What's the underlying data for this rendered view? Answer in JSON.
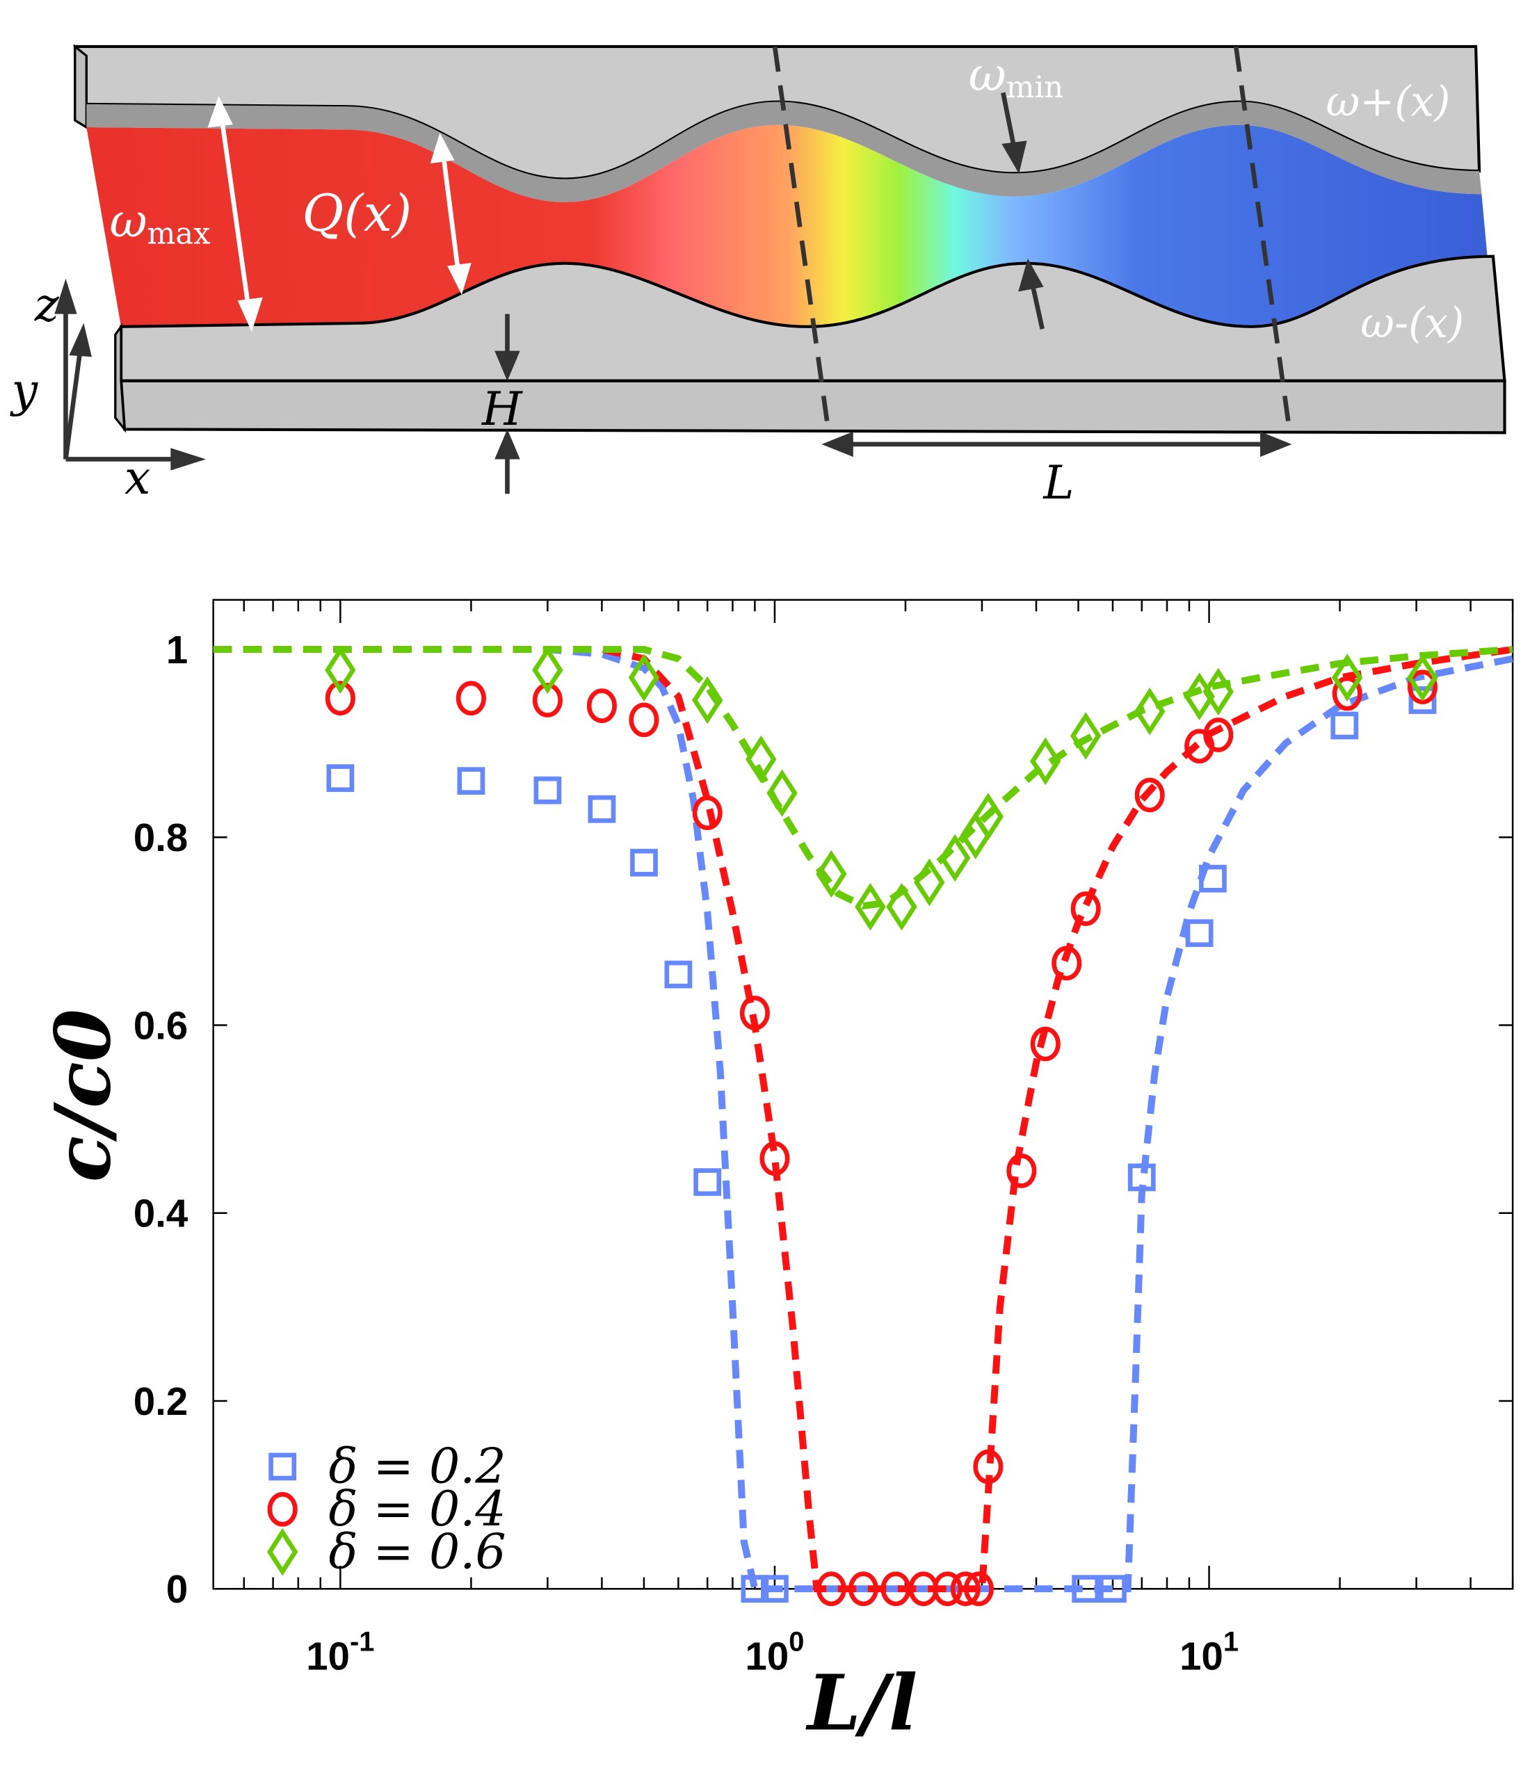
{
  "diagram": {
    "labels": {
      "omega_max": "ω",
      "omega_max_sub": "max",
      "q": "Q(x)",
      "omega_min": "ω",
      "omega_min_sub": "min",
      "omega_plus": "ω+(x)",
      "omega_minus": "ω-(x)",
      "h": "H",
      "l": "L",
      "axis_x": "x",
      "axis_y": "y",
      "axis_z": "z"
    },
    "colors": {
      "wall": "#cbcbcb",
      "wall_face": "#9a9a9a",
      "fluid_start": "#e8322b",
      "fluid_end": "#3a64d8"
    }
  },
  "chart_data": {
    "type": "scatter",
    "xlabel": "L/l",
    "ylabel": "c/c0",
    "xscale": "log",
    "xlim": [
      0.051,
      50
    ],
    "ylim": [
      0,
      1.05
    ],
    "yticks": [
      "0",
      "0.2",
      "0.4",
      "0.6",
      "0.8",
      "1"
    ],
    "ytick_values": [
      0,
      0.2,
      0.4,
      0.6,
      0.8,
      1
    ],
    "xticks": [
      {
        "base": "10",
        "exp": "-1",
        "value": 0.1
      },
      {
        "base": "10",
        "exp": "0",
        "value": 1
      },
      {
        "base": "10",
        "exp": "1",
        "value": 10
      }
    ],
    "grid": false,
    "legend_position": "bottom-left",
    "series": [
      {
        "name": "δ = 0.2",
        "marker": "square",
        "color": "#6688ff",
        "points": [
          [
            0.1,
            0.863
          ],
          [
            0.2,
            0.86
          ],
          [
            0.3,
            0.85
          ],
          [
            0.4,
            0.83
          ],
          [
            0.5,
            0.773
          ],
          [
            0.6,
            0.654
          ],
          [
            0.7,
            0.433
          ],
          [
            0.9,
            0
          ],
          [
            1.0,
            0
          ],
          [
            5.2,
            0
          ],
          [
            6.0,
            0
          ],
          [
            7.0,
            0.438
          ],
          [
            9.5,
            0.698
          ],
          [
            10.2,
            0.756
          ],
          [
            20.5,
            0.919
          ],
          [
            31,
            0.946
          ]
        ],
        "model": {
          "x": [
            0.051,
            0.3,
            0.4,
            0.5,
            0.55,
            0.6,
            0.65,
            0.7,
            0.75,
            0.8,
            0.85,
            0.9,
            6.5,
            6.8,
            7,
            7.5,
            8,
            9,
            10,
            12,
            15,
            20,
            30,
            50
          ],
          "y": [
            1,
            1,
            0.995,
            0.98,
            0.96,
            0.92,
            0.84,
            0.72,
            0.55,
            0.3,
            0.05,
            0,
            0,
            0.25,
            0.42,
            0.55,
            0.63,
            0.72,
            0.78,
            0.85,
            0.9,
            0.94,
            0.97,
            0.99
          ]
        }
      },
      {
        "name": "δ = 0.4",
        "marker": "circle",
        "color": "#ff1111",
        "points": [
          [
            0.1,
            0.948
          ],
          [
            0.2,
            0.948
          ],
          [
            0.3,
            0.946
          ],
          [
            0.4,
            0.94
          ],
          [
            0.5,
            0.925
          ],
          [
            0.7,
            0.826
          ],
          [
            0.9,
            0.613
          ],
          [
            1.0,
            0.458
          ],
          [
            1.35,
            0
          ],
          [
            1.6,
            0
          ],
          [
            1.9,
            0
          ],
          [
            2.2,
            0
          ],
          [
            2.5,
            0
          ],
          [
            2.75,
            0
          ],
          [
            2.95,
            0
          ],
          [
            3.1,
            0.13
          ],
          [
            3.7,
            0.445
          ],
          [
            4.2,
            0.58
          ],
          [
            4.7,
            0.666
          ],
          [
            5.2,
            0.724
          ],
          [
            7.3,
            0.845
          ],
          [
            9.5,
            0.897
          ],
          [
            10.5,
            0.909
          ],
          [
            20.8,
            0.953
          ],
          [
            31,
            0.96
          ]
        ],
        "model": {
          "x": [
            0.051,
            0.4,
            0.5,
            0.6,
            0.7,
            0.8,
            0.9,
            1.0,
            1.1,
            1.2,
            1.25,
            3.0,
            3.1,
            3.3,
            3.6,
            4,
            4.5,
            5,
            6,
            7,
            8,
            10,
            15,
            20,
            30,
            50
          ],
          "y": [
            1,
            1,
            0.99,
            0.95,
            0.84,
            0.72,
            0.6,
            0.46,
            0.28,
            0.08,
            0,
            0,
            0.1,
            0.3,
            0.45,
            0.56,
            0.65,
            0.71,
            0.79,
            0.84,
            0.87,
            0.91,
            0.95,
            0.97,
            0.985,
            1
          ]
        }
      },
      {
        "name": "δ = 0.6",
        "marker": "diamond",
        "color": "#66cc00",
        "points": [
          [
            0.1,
            0.978
          ],
          [
            0.3,
            0.978
          ],
          [
            0.5,
            0.97
          ],
          [
            0.7,
            0.946
          ],
          [
            0.93,
            0.883
          ],
          [
            1.04,
            0.847
          ],
          [
            1.35,
            0.761
          ],
          [
            1.66,
            0.726
          ],
          [
            1.96,
            0.726
          ],
          [
            2.27,
            0.752
          ],
          [
            2.6,
            0.778
          ],
          [
            2.9,
            0.802
          ],
          [
            3.1,
            0.822
          ],
          [
            4.2,
            0.881
          ],
          [
            5.2,
            0.908
          ],
          [
            7.3,
            0.934
          ],
          [
            9.5,
            0.95
          ],
          [
            10.5,
            0.955
          ],
          [
            20.8,
            0.97
          ],
          [
            31,
            0.97
          ]
        ],
        "model": {
          "x": [
            0.051,
            0.5,
            0.6,
            0.7,
            0.8,
            0.9,
            1.0,
            1.2,
            1.4,
            1.6,
            1.8,
            2.0,
            2.4,
            2.8,
            3.2,
            4,
            5,
            7,
            10,
            15,
            20,
            30,
            50
          ],
          "y": [
            1,
            1,
            0.99,
            0.96,
            0.92,
            0.88,
            0.84,
            0.78,
            0.74,
            0.727,
            0.73,
            0.745,
            0.775,
            0.805,
            0.83,
            0.87,
            0.9,
            0.935,
            0.96,
            0.975,
            0.985,
            0.993,
            1
          ]
        }
      }
    ]
  }
}
